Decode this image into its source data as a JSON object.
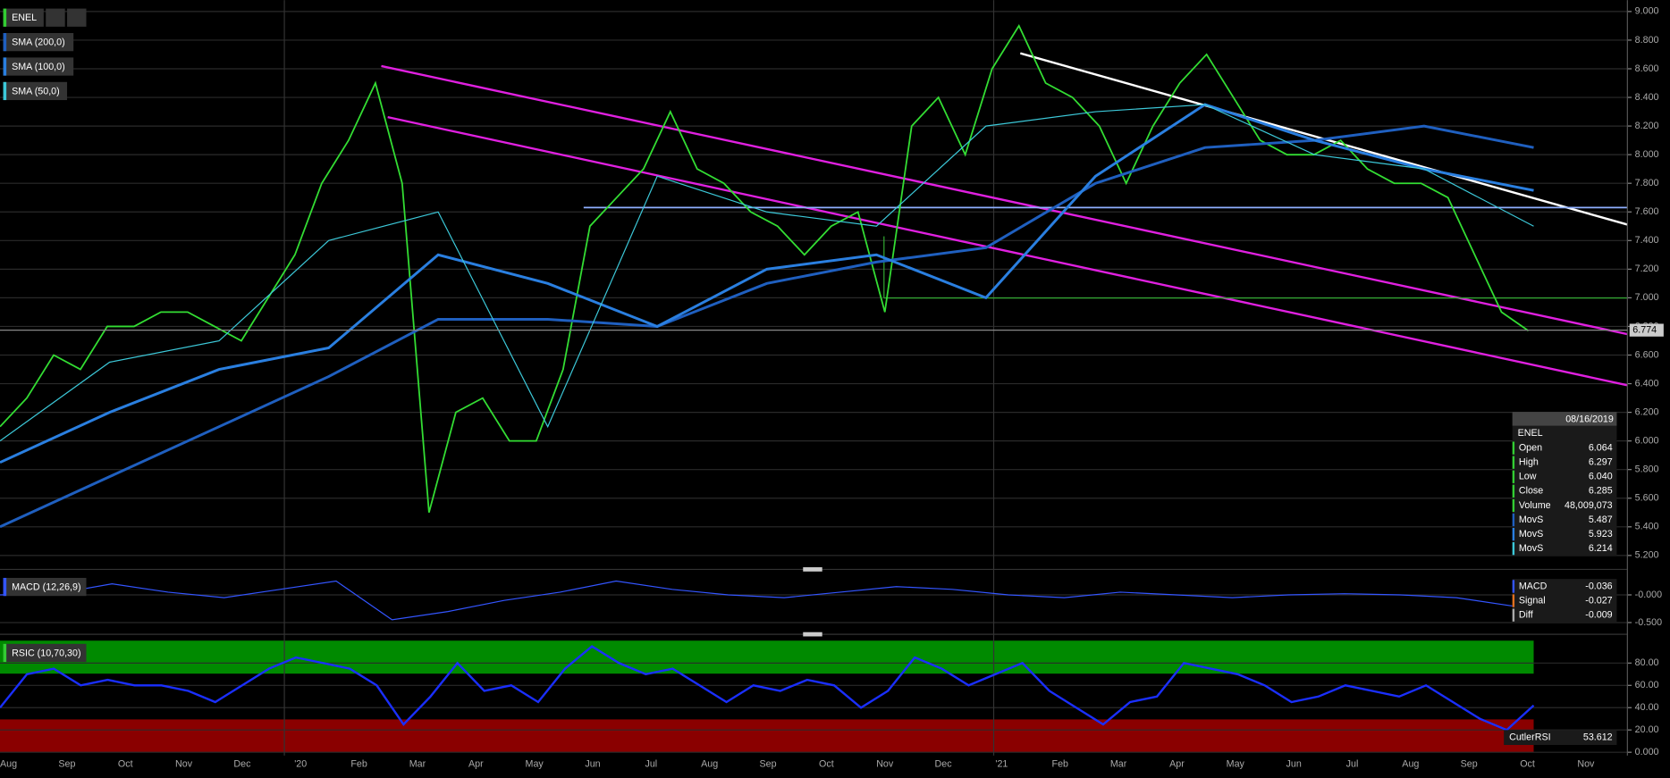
{
  "chart_data": {
    "type": "line",
    "symbol": "ENEL",
    "indicators": [
      "SMA (200,0)",
      "SMA (100,0)",
      "SMA (50,0)"
    ],
    "months": [
      "Aug",
      "Sep",
      "Oct",
      "Nov",
      "Dec",
      "'20",
      "Feb",
      "Mar",
      "Apr",
      "May",
      "Jun",
      "Jul",
      "Aug",
      "Sep",
      "Oct",
      "Nov",
      "Dec",
      "'21",
      "Feb",
      "Mar",
      "Apr",
      "May",
      "Jun",
      "Jul",
      "Aug",
      "Sep",
      "Oct",
      "Nov"
    ],
    "series": [
      {
        "name": "ENEL",
        "color": "#33dd33",
        "values": [
          6.1,
          6.3,
          6.6,
          6.5,
          6.8,
          6.8,
          6.9,
          6.9,
          6.8,
          6.7,
          7.0,
          7.3,
          7.8,
          8.1,
          8.5,
          7.8,
          5.5,
          6.2,
          6.3,
          6.0,
          6.0,
          6.5,
          7.5,
          7.7,
          7.9,
          8.3,
          7.9,
          7.8,
          7.6,
          7.5,
          7.3,
          7.5,
          7.6,
          6.9,
          8.2,
          8.4,
          8.0,
          8.6,
          8.9,
          8.5,
          8.4,
          8.2,
          7.8,
          8.2,
          8.5,
          8.7,
          8.4,
          8.1,
          8.0,
          8.0,
          8.1,
          7.9,
          7.8,
          7.8,
          7.7,
          7.3,
          6.9,
          6.77
        ]
      },
      {
        "name": "SMA (200,0)",
        "color": "#1f5fbf",
        "values": [
          5.4,
          5.75,
          6.1,
          6.45,
          6.85,
          6.85,
          6.8,
          7.1,
          7.25,
          7.35,
          7.8,
          8.05,
          8.1,
          8.2,
          8.05
        ]
      },
      {
        "name": "SMA (100,0)",
        "color": "#2a7fe0",
        "values": [
          5.85,
          6.2,
          6.5,
          6.65,
          7.3,
          7.1,
          6.8,
          7.2,
          7.3,
          7.0,
          7.85,
          8.35,
          8.1,
          7.9,
          7.75
        ]
      },
      {
        "name": "SMA (50,0)",
        "color": "#3cc8d8",
        "values": [
          6.0,
          6.55,
          6.7,
          7.4,
          7.6,
          6.1,
          7.85,
          7.6,
          7.5,
          8.2,
          8.3,
          8.35,
          8.0,
          7.9,
          7.5
        ]
      }
    ],
    "ylim": [
      5.14,
      9.08
    ],
    "yticks": [
      {
        "value": 5.2,
        "label": "5.200"
      },
      {
        "value": 5.4,
        "label": "5.400"
      },
      {
        "value": 5.6,
        "label": "5.600"
      },
      {
        "value": 5.8,
        "label": "5.800"
      },
      {
        "value": 6.0,
        "label": "6.000"
      },
      {
        "value": 6.2,
        "label": "6.200"
      },
      {
        "value": 6.4,
        "label": "6.400"
      },
      {
        "value": 6.6,
        "label": "6.600"
      },
      {
        "value": 6.8,
        "label": "6.800"
      },
      {
        "value": 7.0,
        "label": "7.000"
      },
      {
        "value": 7.2,
        "label": "7.200"
      },
      {
        "value": 7.4,
        "label": "7.400"
      },
      {
        "value": 7.6,
        "label": "7.600"
      },
      {
        "value": 7.8,
        "label": "7.800"
      },
      {
        "value": 8.0,
        "label": "8.000"
      },
      {
        "value": 8.2,
        "label": "8.200"
      },
      {
        "value": 8.4,
        "label": "8.400"
      },
      {
        "value": 8.6,
        "label": "8.600"
      },
      {
        "value": 8.8,
        "label": "8.800"
      },
      {
        "value": 9.0,
        "label": "9.000"
      }
    ],
    "last_price": {
      "value": 6.774,
      "label": "6.774"
    },
    "grid": true,
    "info": {
      "date": "08/16/2019",
      "symbol": "ENEL",
      "rows": [
        [
          "Open",
          "6.064"
        ],
        [
          "High",
          "6.297"
        ],
        [
          "Low",
          "6.040"
        ],
        [
          "Close",
          "6.285"
        ],
        [
          "Volume",
          "48,009,073"
        ],
        [
          "MovS",
          "5.487"
        ],
        [
          "MovS",
          "5.923"
        ],
        [
          "MovS",
          "6.214"
        ]
      ]
    },
    "macd": {
      "title": "MACD (12,26,9)",
      "color": "#3355ff",
      "values": [
        0.0,
        0.02,
        0.2,
        0.05,
        -0.05,
        0.1,
        0.25,
        -0.45,
        -0.3,
        -0.1,
        0.05,
        0.25,
        0.1,
        0.0,
        -0.05,
        0.05,
        0.15,
        0.1,
        0.0,
        -0.05,
        0.05,
        0.0,
        -0.05,
        0.0,
        0.02,
        0.0,
        -0.05,
        -0.2
      ],
      "ylim": [
        -0.635,
        0.365
      ],
      "yticks": [
        {
          "value": 0,
          "label": "-0.000"
        },
        {
          "value": -0.5,
          "label": "-0.500"
        }
      ],
      "readout": [
        [
          "MACD",
          "-0.036"
        ],
        [
          "Signal",
          "-0.027"
        ],
        [
          "Diff",
          "-0.009"
        ]
      ]
    },
    "rsi": {
      "title": "RSIC (10,70,30)",
      "color": "#1a2fff",
      "values": [
        40,
        70,
        75,
        60,
        65,
        60,
        60,
        55,
        45,
        60,
        75,
        85,
        80,
        75,
        60,
        25,
        50,
        80,
        55,
        60,
        45,
        75,
        95,
        80,
        70,
        75,
        60,
        45,
        60,
        55,
        65,
        60,
        40,
        55,
        85,
        75,
        60,
        70,
        80,
        55,
        40,
        25,
        45,
        50,
        80,
        75,
        70,
        60,
        45,
        50,
        60,
        55,
        50,
        60,
        45,
        30,
        20,
        42
      ],
      "ylim": [
        -3,
        102
      ],
      "yticks": [
        {
          "value": 0,
          "label": "0.000"
        },
        {
          "value": 20,
          "label": "20.00"
        },
        {
          "value": 40,
          "label": "40.00"
        },
        {
          "value": 60,
          "label": "60.00"
        },
        {
          "value": 80,
          "label": "80.00"
        }
      ],
      "readout": [
        "CutlerRSI",
        "53.612"
      ]
    }
  }
}
